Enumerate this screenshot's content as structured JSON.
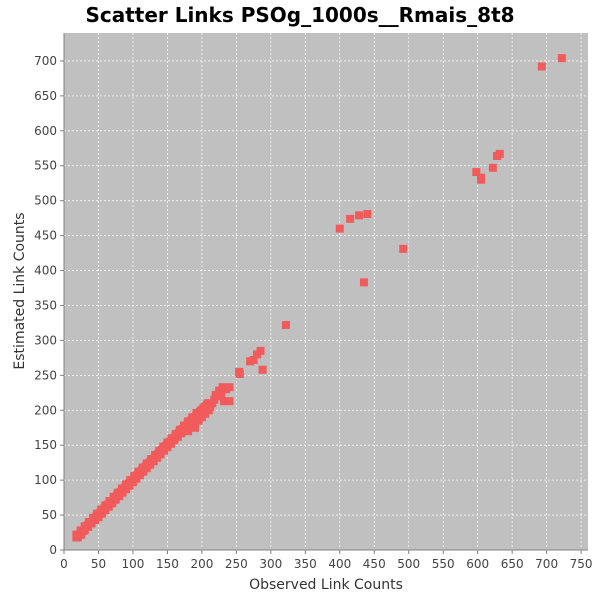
{
  "chart_data": {
    "type": "scatter",
    "title": "Scatter Links PSOg_1000s__Rmais_8t8",
    "xlabel": "Observed Link Counts",
    "ylabel": "Estimated Link Counts",
    "xlim": [
      0,
      760
    ],
    "ylim": [
      0,
      740
    ],
    "x_ticks": [
      0,
      50,
      100,
      150,
      200,
      250,
      300,
      350,
      400,
      450,
      500,
      550,
      600,
      650,
      700,
      750
    ],
    "y_ticks": [
      0,
      50,
      100,
      150,
      200,
      250,
      300,
      350,
      400,
      450,
      500,
      550,
      600,
      650,
      700
    ],
    "x_tick_labels": [
      "0",
      "50",
      "100",
      "150",
      "200",
      "250",
      "300",
      "350",
      "400",
      "450",
      "500",
      "550",
      "600",
      "650",
      "700",
      "750"
    ],
    "y_tick_labels": [
      "0",
      "50",
      "100",
      "150",
      "200",
      "250",
      "300",
      "350",
      "400",
      "450",
      "500",
      "550",
      "600",
      "650",
      "700"
    ],
    "grid": true,
    "legend": "none",
    "colors": {
      "plot_bg": "#c0c0c0",
      "point": "#f15b5b",
      "grid": "#ffffff"
    },
    "series": [
      {
        "points": [
          [
            18,
            18
          ],
          [
            20,
            20
          ],
          [
            22,
            22
          ],
          [
            24,
            22
          ],
          [
            25,
            25
          ],
          [
            27,
            27
          ],
          [
            29,
            28
          ],
          [
            30,
            30
          ],
          [
            32,
            33
          ],
          [
            34,
            35
          ],
          [
            35,
            35
          ],
          [
            37,
            38
          ],
          [
            39,
            40
          ],
          [
            40,
            40
          ],
          [
            42,
            43
          ],
          [
            44,
            45
          ],
          [
            45,
            45
          ],
          [
            47,
            48
          ],
          [
            49,
            50
          ],
          [
            50,
            50
          ],
          [
            52,
            53
          ],
          [
            54,
            55
          ],
          [
            55,
            55
          ],
          [
            57,
            58
          ],
          [
            59,
            60
          ],
          [
            60,
            60
          ],
          [
            62,
            63
          ],
          [
            64,
            65
          ],
          [
            65,
            65
          ],
          [
            67,
            68
          ],
          [
            69,
            70
          ],
          [
            70,
            70
          ],
          [
            72,
            73
          ],
          [
            74,
            75
          ],
          [
            75,
            75
          ],
          [
            77,
            78
          ],
          [
            79,
            80
          ],
          [
            80,
            80
          ],
          [
            82,
            83
          ],
          [
            84,
            85
          ],
          [
            85,
            85
          ],
          [
            87,
            88
          ],
          [
            89,
            90
          ],
          [
            90,
            90
          ],
          [
            92,
            93
          ],
          [
            94,
            95
          ],
          [
            95,
            95
          ],
          [
            97,
            98
          ],
          [
            99,
            100
          ],
          [
            100,
            100
          ],
          [
            102,
            103
          ],
          [
            104,
            105
          ],
          [
            105,
            105
          ],
          [
            107,
            108
          ],
          [
            109,
            110
          ],
          [
            110,
            110
          ],
          [
            112,
            113
          ],
          [
            114,
            115
          ],
          [
            115,
            115
          ],
          [
            117,
            118
          ],
          [
            119,
            120
          ],
          [
            120,
            120
          ],
          [
            122,
            123
          ],
          [
            124,
            125
          ],
          [
            125,
            125
          ],
          [
            127,
            128
          ],
          [
            129,
            130
          ],
          [
            130,
            130
          ],
          [
            132,
            133
          ],
          [
            134,
            135
          ],
          [
            135,
            135
          ],
          [
            137,
            138
          ],
          [
            139,
            140
          ],
          [
            140,
            140
          ],
          [
            142,
            143
          ],
          [
            144,
            145
          ],
          [
            145,
            145
          ],
          [
            147,
            148
          ],
          [
            149,
            150
          ],
          [
            150,
            150
          ],
          [
            152,
            153
          ],
          [
            154,
            155
          ],
          [
            155,
            155
          ],
          [
            157,
            158
          ],
          [
            159,
            160
          ],
          [
            160,
            160
          ],
          [
            162,
            163
          ],
          [
            164,
            165
          ],
          [
            165,
            165
          ],
          [
            167,
            168
          ],
          [
            169,
            170
          ],
          [
            170,
            170
          ],
          [
            172,
            173
          ],
          [
            174,
            175
          ],
          [
            175,
            175
          ],
          [
            177,
            178
          ],
          [
            179,
            180
          ],
          [
            180,
            180
          ],
          [
            182,
            183
          ],
          [
            184,
            185
          ],
          [
            185,
            185
          ],
          [
            187,
            188
          ],
          [
            189,
            190
          ],
          [
            190,
            190
          ],
          [
            192,
            193
          ],
          [
            194,
            195
          ],
          [
            195,
            195
          ],
          [
            197,
            198
          ],
          [
            199,
            200
          ],
          [
            200,
            200
          ],
          [
            202,
            203
          ],
          [
            204,
            205
          ],
          [
            205,
            205
          ],
          [
            207,
            208
          ],
          [
            209,
            210
          ],
          [
            210,
            210
          ],
          [
            20,
            18
          ],
          [
            25,
            22
          ],
          [
            30,
            28
          ],
          [
            35,
            33
          ],
          [
            40,
            38
          ],
          [
            45,
            43
          ],
          [
            50,
            47
          ],
          [
            55,
            52
          ],
          [
            60,
            57
          ],
          [
            65,
            62
          ],
          [
            70,
            67
          ],
          [
            75,
            72
          ],
          [
            80,
            77
          ],
          [
            85,
            82
          ],
          [
            90,
            87
          ],
          [
            95,
            92
          ],
          [
            100,
            97
          ],
          [
            105,
            102
          ],
          [
            110,
            107
          ],
          [
            115,
            112
          ],
          [
            120,
            117
          ],
          [
            125,
            122
          ],
          [
            130,
            127
          ],
          [
            135,
            132
          ],
          [
            140,
            137
          ],
          [
            145,
            142
          ],
          [
            150,
            147
          ],
          [
            155,
            152
          ],
          [
            160,
            157
          ],
          [
            165,
            162
          ],
          [
            170,
            167
          ],
          [
            175,
            172
          ],
          [
            180,
            177
          ],
          [
            185,
            182
          ],
          [
            190,
            187
          ],
          [
            195,
            192
          ],
          [
            200,
            197
          ],
          [
            18,
            22
          ],
          [
            24,
            28
          ],
          [
            30,
            34
          ],
          [
            36,
            40
          ],
          [
            42,
            46
          ],
          [
            48,
            52
          ],
          [
            54,
            58
          ],
          [
            60,
            64
          ],
          [
            66,
            70
          ],
          [
            72,
            76
          ],
          [
            78,
            82
          ],
          [
            84,
            88
          ],
          [
            90,
            94
          ],
          [
            96,
            100
          ],
          [
            102,
            106
          ],
          [
            108,
            112
          ],
          [
            114,
            118
          ],
          [
            120,
            124
          ],
          [
            126,
            130
          ],
          [
            132,
            136
          ],
          [
            138,
            142
          ],
          [
            144,
            148
          ],
          [
            150,
            154
          ],
          [
            156,
            160
          ],
          [
            162,
            166
          ],
          [
            168,
            172
          ],
          [
            174,
            178
          ],
          [
            180,
            184
          ],
          [
            186,
            190
          ],
          [
            192,
            196
          ],
          [
            180,
            170
          ],
          [
            185,
            178
          ],
          [
            190,
            175
          ],
          [
            195,
            185
          ],
          [
            200,
            190
          ],
          [
            205,
            195
          ],
          [
            210,
            200
          ],
          [
            212,
            205
          ],
          [
            215,
            210
          ],
          [
            218,
            215
          ],
          [
            220,
            222
          ],
          [
            225,
            228
          ],
          [
            228,
            220
          ],
          [
            230,
            233
          ],
          [
            235,
            230
          ],
          [
            240,
            233
          ],
          [
            232,
            213
          ],
          [
            240,
            213
          ],
          [
            254,
            255
          ],
          [
            255,
            252
          ],
          [
            270,
            270
          ],
          [
            275,
            272
          ],
          [
            280,
            280
          ],
          [
            285,
            285
          ],
          [
            288,
            258
          ],
          [
            322,
            322
          ],
          [
            400,
            460
          ],
          [
            415,
            474
          ],
          [
            428,
            479
          ],
          [
            440,
            481
          ],
          [
            435,
            383
          ],
          [
            492,
            431
          ],
          [
            598,
            541
          ],
          [
            605,
            533
          ],
          [
            605,
            530
          ],
          [
            622,
            547
          ],
          [
            628,
            564
          ],
          [
            632,
            567
          ],
          [
            693,
            692
          ],
          [
            722,
            704
          ]
        ]
      }
    ]
  }
}
